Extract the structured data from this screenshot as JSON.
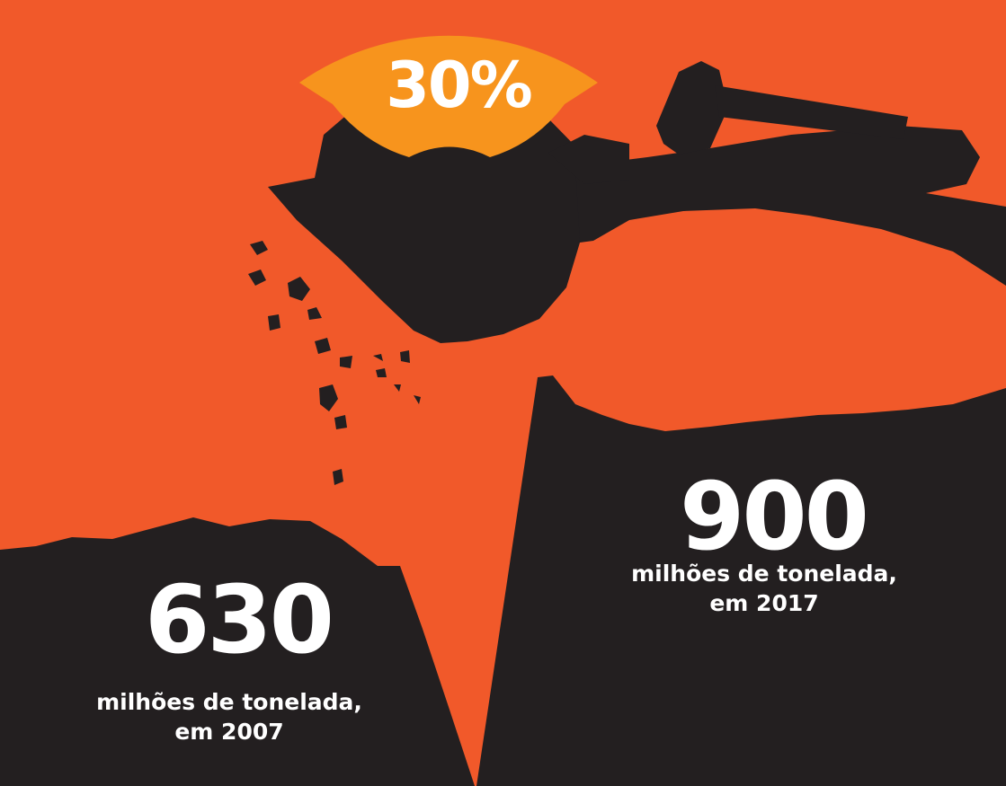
{
  "badge": {
    "percent": "30%"
  },
  "left_stat": {
    "value": "630",
    "line1": "milhões de tonelada,",
    "line2": "em 2007"
  },
  "right_stat": {
    "value": "900",
    "line1": "milhões de tonelada,",
    "line2": "em 2017"
  },
  "colors": {
    "background": "#F1592A",
    "dark": "#231F20",
    "badge": "#F7941D",
    "text": "#FFFFFF"
  },
  "icons": [
    "excavator-silhouette-icon",
    "falling-rocks-icon"
  ]
}
